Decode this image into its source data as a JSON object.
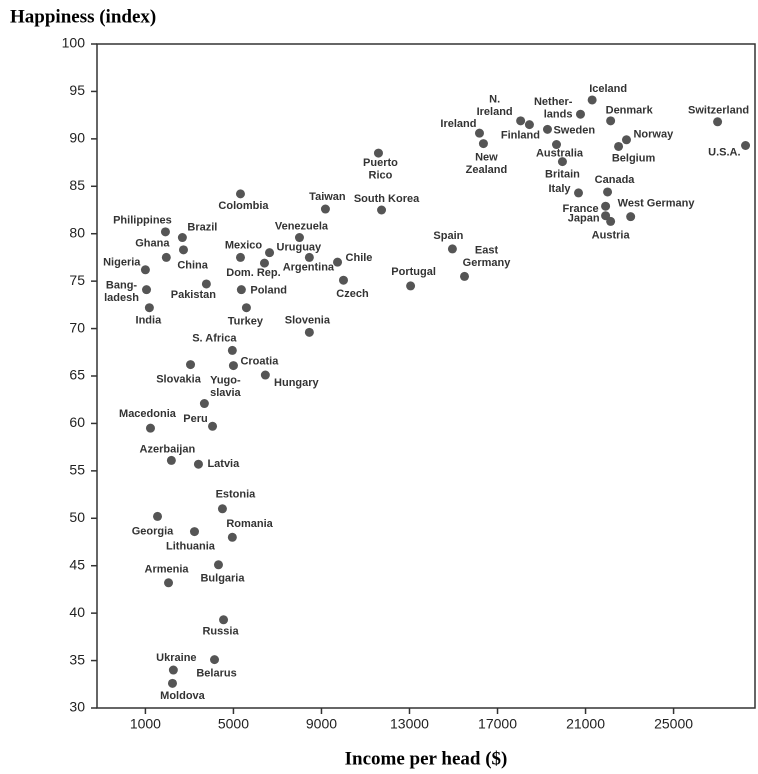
{
  "chart_data": {
    "type": "scatter",
    "ylabel": "Happiness (index)",
    "xlabel": "Income per head ($)",
    "xlim": [
      -1200,
      28700
    ],
    "ylim": [
      30,
      100
    ],
    "xticks": [
      1000,
      5000,
      9000,
      13000,
      17000,
      21000,
      25000
    ],
    "yticks": [
      30,
      35,
      40,
      45,
      50,
      55,
      60,
      65,
      70,
      75,
      80,
      85,
      90,
      95,
      100
    ],
    "color": "#555555",
    "labels": [
      [
        "Iceland"
      ],
      [
        "Nether-",
        "lands"
      ],
      [
        "Denmark"
      ],
      [
        "Switzerland"
      ],
      [
        "N.",
        "Ireland"
      ],
      [
        "Finland"
      ],
      [
        "Sweden"
      ],
      [
        "Ireland"
      ],
      [
        "Norway"
      ],
      [
        "Australia"
      ],
      [
        "Belgium"
      ],
      [
        "U.S.A."
      ],
      [
        "New",
        "Zealand"
      ],
      [
        "Puerto",
        "Rico"
      ],
      [
        "Britain"
      ],
      [
        "Italy"
      ],
      [
        "Canada"
      ],
      [
        "Colombia"
      ],
      [
        "Taiwan"
      ],
      [
        "South Korea"
      ],
      [
        "West Germany"
      ],
      [
        "France"
      ],
      [
        "Japan"
      ],
      [
        "Austria"
      ],
      [
        "Philippines"
      ],
      [
        "Brazil"
      ],
      [
        "Venezuela"
      ],
      [
        "Ghana"
      ],
      [
        "Uruguay"
      ],
      [
        "Mexico"
      ],
      [
        "China"
      ],
      [
        "Argentina"
      ],
      [
        "Chile"
      ],
      [
        "Dom. Rep."
      ],
      [
        "Spain"
      ],
      [
        "Nigeria"
      ],
      [
        "Czech"
      ],
      [
        "East",
        "Germany"
      ],
      [
        "Portugal"
      ],
      [
        "Pakistan"
      ],
      [
        "Poland"
      ],
      [
        "Bang-",
        "ladesh"
      ],
      [
        "India"
      ],
      [
        "Turkey"
      ],
      [
        "Slovenia"
      ],
      [
        "S. Africa"
      ],
      [
        "Slovakia"
      ],
      [
        "Croatia"
      ],
      [
        "Hungary"
      ],
      [
        "Yugo-",
        "slavia"
      ],
      [
        "Macedonia"
      ],
      [
        "Peru"
      ],
      [
        "Azerbaijan"
      ],
      [
        "Latvia"
      ],
      [
        "Estonia"
      ],
      [
        "Georgia"
      ],
      [
        "Lithuania"
      ],
      [
        "Romania"
      ],
      [
        "Bulgaria"
      ],
      [
        "Armenia"
      ],
      [
        "Russia"
      ],
      [
        "Ukraine"
      ],
      [
        "Belarus"
      ],
      [
        "Moldova"
      ]
    ],
    "x": [
      21300,
      20770,
      22140,
      27000,
      18050,
      18450,
      19270,
      16180,
      22860,
      19680,
      22500,
      28270,
      16360,
      11590,
      19950,
      20680,
      22000,
      5320,
      9180,
      11730,
      23050,
      21910,
      21910,
      22140,
      1910,
      2680,
      8000,
      2730,
      6640,
      5320,
      1950,
      8450,
      9730,
      6410,
      14950,
      1000,
      10000,
      15500,
      13050,
      3770,
      5360,
      1050,
      1180,
      5590,
      8450,
      4950,
      3050,
      5000,
      6450,
      3680,
      1230,
      4050,
      2180,
      3410,
      4500,
      1550,
      3230,
      4950,
      4320,
      2050,
      4550,
      2270,
      4140,
      2230
    ],
    "values": [
      94.1,
      92.6,
      91.9,
      91.8,
      91.9,
      91.5,
      91.0,
      90.6,
      89.9,
      89.4,
      89.2,
      89.3,
      89.5,
      88.5,
      87.6,
      84.3,
      84.4,
      84.2,
      82.6,
      82.5,
      81.8,
      82.9,
      81.9,
      81.3,
      80.2,
      79.6,
      79.6,
      78.3,
      78.0,
      77.5,
      77.5,
      77.5,
      77.0,
      76.9,
      78.4,
      76.2,
      75.1,
      75.5,
      74.5,
      74.7,
      74.1,
      74.1,
      72.2,
      72.2,
      69.6,
      67.7,
      66.2,
      66.1,
      65.1,
      62.1,
      59.5,
      59.7,
      56.1,
      55.7,
      51.0,
      50.2,
      48.6,
      48.0,
      45.1,
      43.2,
      39.3,
      34.0,
      35.1,
      32.6
    ]
  }
}
